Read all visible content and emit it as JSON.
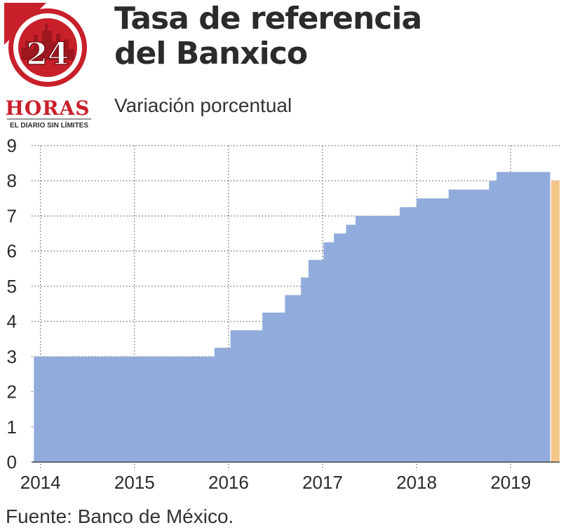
{
  "brand": {
    "number": "24",
    "name": "HORAS",
    "tagline": "EL DIARIO SIN LÍMITES",
    "colors": {
      "red": "#c8202a",
      "dark": "#2b2b2b"
    }
  },
  "title_line1": "Tasa de referencia",
  "title_line2": "del Banxico",
  "subtitle": "Variación porcentual",
  "source": "Fuente: Banco de México.",
  "colors": {
    "bars": "#91abdc",
    "highlight": "#f5c68a",
    "grid": "#444444",
    "text": "#2b2b2b"
  },
  "chart_data": {
    "type": "area",
    "step": true,
    "xlim": [
      2013.98,
      2019.52
    ],
    "ylim": [
      0,
      9
    ],
    "yticks": [
      0,
      1,
      2,
      3,
      4,
      5,
      6,
      7,
      8,
      9
    ],
    "xticks": [
      {
        "value": 2014,
        "label": "2014"
      },
      {
        "value": 2015,
        "label": "2015"
      },
      {
        "value": 2016,
        "label": "2016"
      },
      {
        "value": 2017,
        "label": "2017"
      },
      {
        "value": 2018,
        "label": "2018"
      },
      {
        "value": 2019,
        "label": "2019"
      }
    ],
    "grid": {
      "y": true,
      "x": true,
      "style": "dotted"
    },
    "series": [
      {
        "values": [
          [
            2013.93,
            3.0
          ],
          [
            2015.85,
            3.25
          ],
          [
            2016.02,
            3.75
          ],
          [
            2016.36,
            4.25
          ],
          [
            2016.6,
            4.75
          ],
          [
            2016.77,
            5.25
          ],
          [
            2016.85,
            5.75
          ],
          [
            2017.01,
            6.25
          ],
          [
            2017.12,
            6.5
          ],
          [
            2017.25,
            6.75
          ],
          [
            2017.35,
            7.0
          ],
          [
            2017.82,
            7.25
          ],
          [
            2018.0,
            7.5
          ],
          [
            2018.34,
            7.75
          ],
          [
            2018.77,
            8.0
          ],
          [
            2018.85,
            8.25
          ]
        ],
        "end": 2019.42
      }
    ],
    "highlight": {
      "start": 2019.43,
      "end": 2019.52,
      "value": 8.0
    }
  }
}
